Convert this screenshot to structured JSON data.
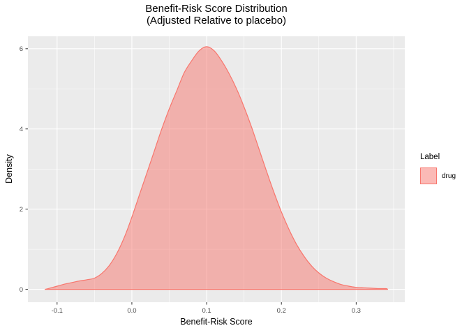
{
  "title": {
    "line1": "Benefit-Risk Score Distribution",
    "line2": "(Adjusted Relative to placebo)"
  },
  "axes": {
    "x": {
      "title": "Benefit-Risk Score",
      "tick_labels": [
        "-0.1",
        "0.0",
        "0.1",
        "0.2",
        "0.3"
      ],
      "ticks": [
        -0.1,
        0,
        0.1,
        0.2,
        0.3
      ],
      "minor_ticks": [
        -0.05,
        0.05,
        0.15,
        0.25,
        0.35
      ],
      "lim": [
        -0.139,
        0.365
      ]
    },
    "y": {
      "title": "Density",
      "tick_labels": [
        "0",
        "2",
        "4",
        "6"
      ],
      "ticks": [
        0,
        2,
        4,
        6
      ],
      "minor_ticks": [
        1,
        3,
        5
      ],
      "lim": [
        -0.32,
        6.31
      ]
    }
  },
  "legend": {
    "title": "Label",
    "items": [
      {
        "label": "drug",
        "fill": "rgba(248,118,109,0.5)",
        "stroke": "#F8766D"
      }
    ]
  },
  "colors": {
    "panel_bg": "#EBEBEB",
    "grid": "#FFFFFF",
    "curve_line": "#F8766D",
    "curve_fill": "rgba(248,118,109,0.5)",
    "tick_text": "#4D4D4D",
    "tick_mark": "#333333",
    "text": "#000000"
  },
  "chart_data": {
    "type": "area",
    "subtype": "kernel-density",
    "title": "Benefit-Risk Score Distribution (Adjusted Relative to placebo)",
    "xlabel": "Benefit-Risk Score",
    "ylabel": "Density",
    "xlim": [
      -0.139,
      0.365
    ],
    "ylim": [
      -0.32,
      6.31
    ],
    "grid": true,
    "legend_position": "right",
    "series": [
      {
        "name": "drug",
        "x": [
          -0.116,
          -0.11,
          -0.1,
          -0.09,
          -0.08,
          -0.07,
          -0.06,
          -0.05,
          -0.04,
          -0.03,
          -0.02,
          -0.01,
          0,
          0.01,
          0.02,
          0.03,
          0.04,
          0.05,
          0.06,
          0.07,
          0.08,
          0.09,
          0.1,
          0.11,
          0.12,
          0.13,
          0.14,
          0.15,
          0.16,
          0.17,
          0.18,
          0.19,
          0.2,
          0.21,
          0.22,
          0.23,
          0.24,
          0.25,
          0.26,
          0.27,
          0.28,
          0.29,
          0.3,
          0.31,
          0.32,
          0.33,
          0.34,
          0.342
        ],
        "density": [
          0,
          0.03,
          0.08,
          0.13,
          0.17,
          0.21,
          0.24,
          0.28,
          0.4,
          0.6,
          0.9,
          1.3,
          1.8,
          2.35,
          2.9,
          3.45,
          4.0,
          4.5,
          4.95,
          5.4,
          5.7,
          5.95,
          6.05,
          5.95,
          5.7,
          5.38,
          5.0,
          4.55,
          4.05,
          3.5,
          2.95,
          2.42,
          1.93,
          1.5,
          1.13,
          0.83,
          0.59,
          0.41,
          0.28,
          0.19,
          0.12,
          0.08,
          0.05,
          0.04,
          0.03,
          0.02,
          0.02,
          0
        ]
      }
    ]
  }
}
